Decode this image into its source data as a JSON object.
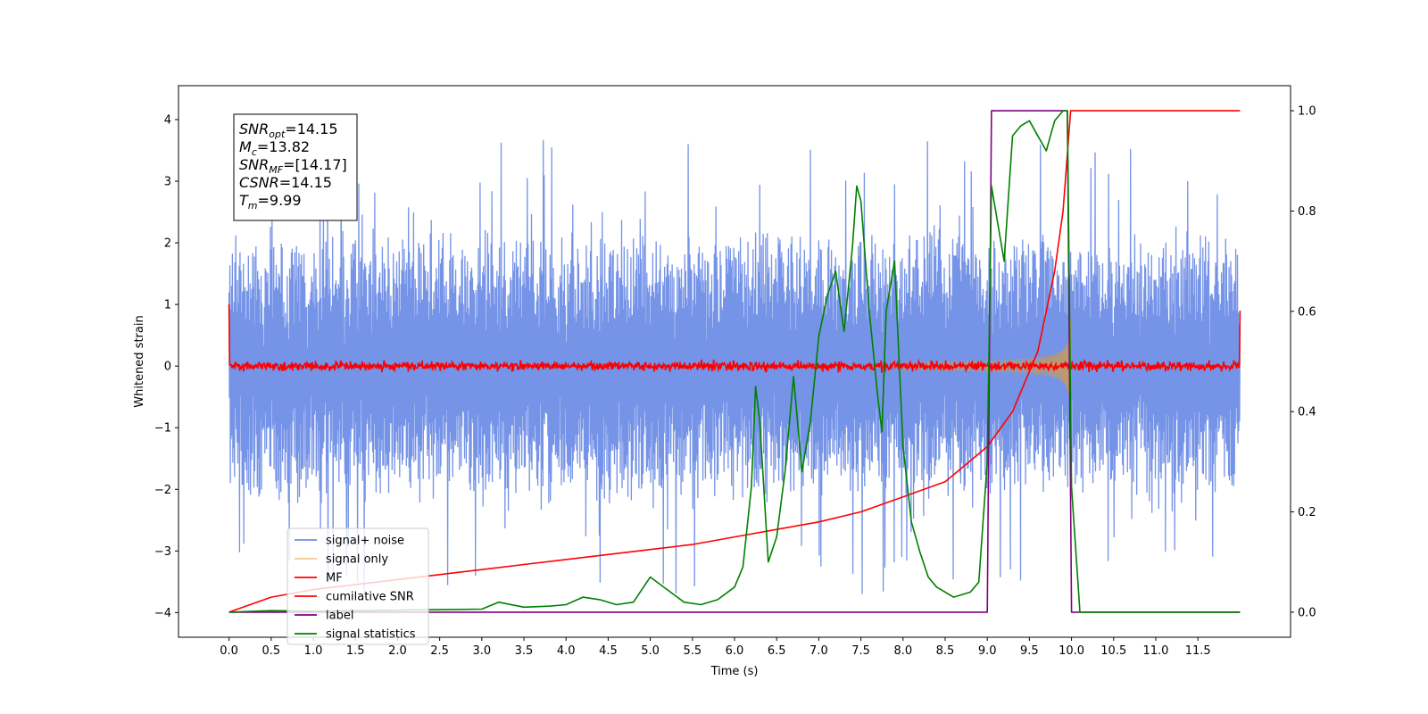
{
  "chart_data": {
    "type": "line",
    "title": "",
    "xlabel": "Time (s)",
    "ylabel": "Whitened strain",
    "xlim": [
      -0.6,
      12.6
    ],
    "ylim": [
      -4.4,
      4.55
    ],
    "y2lim": [
      -0.05,
      1.05
    ],
    "xticks": [
      "0.0",
      "0.5",
      "1.0",
      "1.5",
      "2.0",
      "2.5",
      "3.0",
      "3.5",
      "4.0",
      "4.5",
      "5.0",
      "5.5",
      "6.0",
      "6.5",
      "7.0",
      "7.5",
      "8.0",
      "8.5",
      "9.0",
      "9.5",
      "10.0",
      "10.5",
      "11.0",
      "11.5"
    ],
    "yticks": [
      "4",
      "3",
      "2",
      "1",
      "0",
      "−1",
      "−2",
      "−3",
      "−4"
    ],
    "y2ticks": [
      "1.0",
      "0.8",
      "0.6",
      "0.4",
      "0.2",
      "0.0"
    ],
    "grid": false,
    "legend_position": "lower-left",
    "annotation": {
      "lines": [
        {
          "base": "SNR",
          "sub": "opt",
          "value": "=14.15"
        },
        {
          "base": "M",
          "sub": "c",
          "value": "=13.82"
        },
        {
          "base": "SNR",
          "sub": "MF",
          "value": "=[14.17]"
        },
        {
          "base": "CSNR",
          "sub": "",
          "value": "=14.15"
        },
        {
          "base": "T",
          "sub": "m",
          "value": "=9.99"
        }
      ]
    },
    "series": [
      {
        "name": "signal+ noise",
        "color": "#6e8de6",
        "axis": "left",
        "description_values": {
          "x_range": [
            0,
            12
          ],
          "amplitude_range": [
            -3.8,
            3.9
          ]
        }
      },
      {
        "name": "signal only",
        "color": "#f6c885",
        "axis": "left",
        "description_values": {
          "x_range": [
            0,
            10
          ],
          "peak_amplitude": 1.3
        }
      },
      {
        "name": "MF",
        "color": "#ff0000",
        "axis": "left",
        "description_values": {
          "x_range": [
            0,
            12
          ],
          "baseline": 0.0,
          "noise_amplitude": 0.2
        }
      },
      {
        "name": "cumilative SNR",
        "color": "#ff0000",
        "axis": "right",
        "x": [
          0.0,
          0.5,
          1.0,
          1.5,
          2.0,
          2.5,
          3.0,
          3.5,
          4.0,
          4.5,
          5.0,
          5.5,
          6.0,
          6.5,
          7.0,
          7.5,
          8.0,
          8.5,
          9.0,
          9.3,
          9.6,
          9.8,
          9.9,
          9.99,
          10.0,
          11.5,
          12.0
        ],
        "y": [
          0.0,
          0.03,
          0.045,
          0.055,
          0.065,
          0.075,
          0.085,
          0.095,
          0.105,
          0.115,
          0.125,
          0.135,
          0.15,
          0.165,
          0.18,
          0.2,
          0.23,
          0.26,
          0.33,
          0.4,
          0.52,
          0.68,
          0.8,
          1.0,
          1.0,
          1.0,
          1.0
        ]
      },
      {
        "name": "label",
        "color": "#800080",
        "axis": "right",
        "x": [
          0.0,
          9.0,
          9.05,
          9.95,
          10.0,
          12.0
        ],
        "y": [
          0.0,
          0.0,
          1.0,
          1.0,
          0.0,
          0.0
        ]
      },
      {
        "name": "signal statistics",
        "color": "#008000",
        "axis": "right",
        "x": [
          0.0,
          0.5,
          1.0,
          1.5,
          2.0,
          2.5,
          3.0,
          3.2,
          3.5,
          3.8,
          4.0,
          4.2,
          4.4,
          4.6,
          4.8,
          5.0,
          5.2,
          5.4,
          5.6,
          5.8,
          6.0,
          6.1,
          6.2,
          6.25,
          6.3,
          6.4,
          6.5,
          6.6,
          6.7,
          6.8,
          6.9,
          7.0,
          7.1,
          7.2,
          7.3,
          7.4,
          7.45,
          7.5,
          7.6,
          7.7,
          7.75,
          7.8,
          7.9,
          8.0,
          8.1,
          8.2,
          8.3,
          8.4,
          8.5,
          8.6,
          8.8,
          8.9,
          9.0,
          9.05,
          9.1,
          9.2,
          9.3,
          9.4,
          9.5,
          9.6,
          9.7,
          9.8,
          9.9,
          9.95,
          10.0,
          10.1,
          10.5,
          11.0,
          11.5,
          12.0
        ],
        "y": [
          0.0,
          0.003,
          0.002,
          0.003,
          0.004,
          0.005,
          0.006,
          0.02,
          0.01,
          0.012,
          0.015,
          0.03,
          0.025,
          0.015,
          0.02,
          0.07,
          0.045,
          0.02,
          0.015,
          0.025,
          0.05,
          0.09,
          0.25,
          0.45,
          0.38,
          0.1,
          0.15,
          0.28,
          0.47,
          0.28,
          0.38,
          0.55,
          0.63,
          0.68,
          0.56,
          0.73,
          0.85,
          0.82,
          0.6,
          0.43,
          0.36,
          0.6,
          0.7,
          0.33,
          0.18,
          0.12,
          0.07,
          0.05,
          0.04,
          0.03,
          0.04,
          0.06,
          0.3,
          0.85,
          0.8,
          0.7,
          0.95,
          0.97,
          0.98,
          0.95,
          0.92,
          0.98,
          1.0,
          1.0,
          0.25,
          0.0,
          0.0,
          0.0,
          0.0,
          0.0
        ]
      }
    ]
  }
}
